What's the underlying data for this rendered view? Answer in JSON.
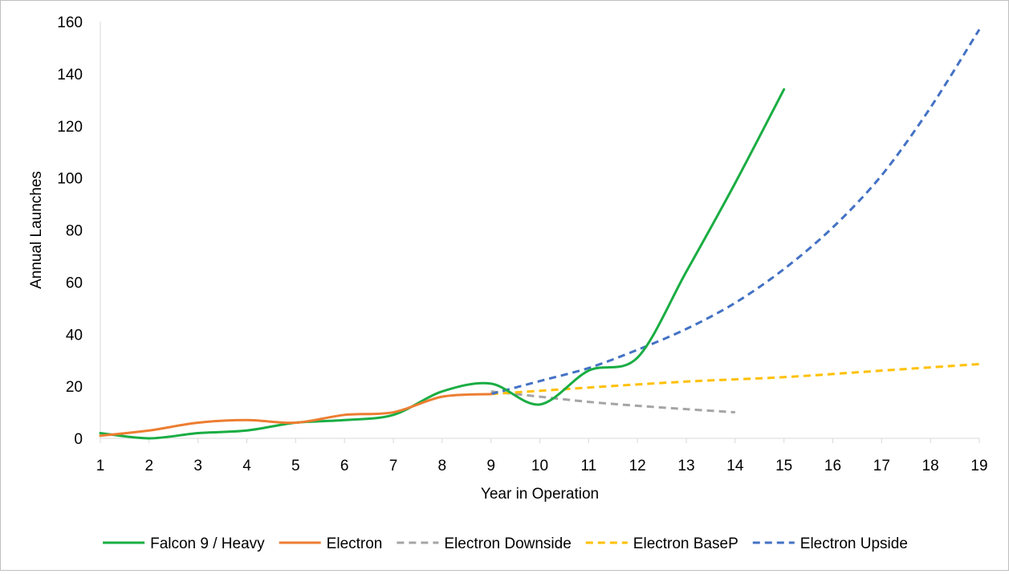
{
  "chart_data": {
    "type": "line",
    "title": "",
    "xlabel": "Year in Operation",
    "ylabel": "Annual Launches",
    "xlim": [
      1,
      19
    ],
    "ylim": [
      0,
      160
    ],
    "x_ticks": [
      1,
      2,
      3,
      4,
      5,
      6,
      7,
      8,
      9,
      10,
      11,
      12,
      13,
      14,
      15,
      16,
      17,
      18,
      19
    ],
    "y_ticks": [
      0,
      20,
      40,
      60,
      80,
      100,
      120,
      140,
      160
    ],
    "grid": false,
    "legend_position": "bottom",
    "series": [
      {
        "name": "Falcon 9 / Heavy",
        "color": "#1aad43",
        "dashed": false,
        "points": [
          [
            1,
            2
          ],
          [
            2,
            0
          ],
          [
            3,
            2
          ],
          [
            4,
            3
          ],
          [
            5,
            6
          ],
          [
            6,
            7
          ],
          [
            7,
            9
          ],
          [
            8,
            18
          ],
          [
            9,
            21
          ],
          [
            10,
            13
          ],
          [
            11,
            26
          ],
          [
            12,
            31
          ],
          [
            13,
            64
          ],
          [
            14,
            98
          ],
          [
            15,
            134
          ]
        ]
      },
      {
        "name": "Electron",
        "color": "#ed7d31",
        "dashed": false,
        "points": [
          [
            1,
            1
          ],
          [
            2,
            3
          ],
          [
            3,
            6
          ],
          [
            4,
            7
          ],
          [
            5,
            6
          ],
          [
            6,
            9
          ],
          [
            7,
            10
          ],
          [
            8,
            16
          ],
          [
            9,
            17
          ]
        ]
      },
      {
        "name": "Electron Downside",
        "color": "#a5a5a5",
        "dashed": true,
        "points": [
          [
            9,
            18
          ],
          [
            10,
            16
          ],
          [
            11,
            14
          ],
          [
            12,
            12.5
          ],
          [
            13,
            11.2
          ],
          [
            14,
            10
          ]
        ]
      },
      {
        "name": "Electron BaseP",
        "color": "#ffc000",
        "dashed": true,
        "points": [
          [
            9,
            17
          ],
          [
            11,
            19.5
          ],
          [
            13,
            21.8
          ],
          [
            15,
            23.5
          ],
          [
            17,
            26
          ],
          [
            19,
            28.5
          ]
        ]
      },
      {
        "name": "Electron Upside",
        "color": "#4472c4",
        "dashed": true,
        "points": [
          [
            9,
            17
          ],
          [
            10,
            22
          ],
          [
            11,
            27
          ],
          [
            12,
            34
          ],
          [
            13,
            42
          ],
          [
            14,
            52
          ],
          [
            15,
            65
          ],
          [
            16,
            81
          ],
          [
            17,
            101
          ],
          [
            18,
            127
          ],
          [
            19,
            157
          ]
        ]
      }
    ]
  }
}
